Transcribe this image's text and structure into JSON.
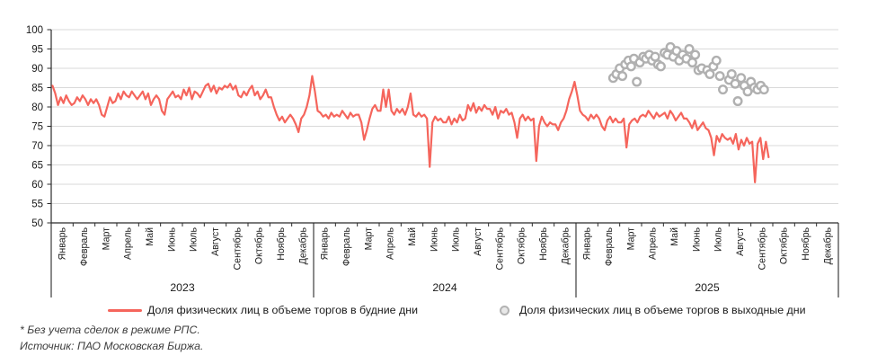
{
  "chart_data": {
    "type": "line",
    "title": "",
    "xlabel": "",
    "ylabel": "",
    "ylim": [
      50,
      100
    ],
    "grid": "horizontal",
    "y_ticks": [
      "100",
      "95",
      "90",
      "85",
      "80",
      "75",
      "70",
      "65",
      "60",
      "55",
      "50"
    ],
    "x_axis": {
      "years": [
        "2023",
        "2024",
        "2025"
      ],
      "months": [
        "Январь",
        "Февраль",
        "Март",
        "Апрель",
        "Май",
        "Июнь",
        "Июль",
        "Август",
        "Сентябрь",
        "Октябрь",
        "Ноябрь",
        "Декабрь"
      ]
    },
    "series": [
      {
        "name": "Доля физических лиц в объеме торгов в будние дни",
        "kind": "line",
        "color": "#F5655C",
        "start_month": 0.06,
        "month_step": 0.125,
        "values": [
          85.5,
          83.5,
          80.5,
          82.5,
          81.0,
          83.0,
          81.5,
          80.5,
          81.0,
          82.5,
          81.5,
          83.0,
          82.0,
          80.5,
          82.0,
          81.0,
          82.0,
          80.5,
          78.0,
          77.5,
          80.0,
          82.5,
          81.0,
          81.5,
          83.5,
          82.0,
          84.0,
          83.0,
          82.5,
          84.0,
          83.0,
          82.0,
          83.0,
          84.0,
          82.0,
          83.5,
          80.5,
          82.0,
          83.0,
          82.0,
          79.0,
          78.0,
          82.0,
          83.0,
          84.0,
          82.5,
          83.0,
          82.0,
          84.5,
          83.0,
          85.0,
          82.0,
          84.0,
          83.5,
          82.5,
          84.0,
          85.5,
          86.0,
          84.0,
          85.5,
          83.5,
          85.0,
          84.5,
          85.5,
          85.0,
          86.0,
          84.5,
          85.5,
          83.0,
          82.5,
          84.0,
          83.0,
          84.5,
          85.5,
          83.0,
          84.0,
          82.0,
          83.0,
          84.5,
          82.5,
          82.5,
          80.0,
          78.0,
          76.5,
          77.5,
          76.0,
          77.0,
          78.0,
          77.0,
          75.5,
          73.5,
          77.0,
          78.0,
          80.0,
          83.0,
          88.0,
          84.0,
          79.0,
          78.5,
          77.5,
          78.0,
          77.0,
          78.5,
          77.5,
          78.0,
          77.5,
          79.0,
          78.0,
          77.0,
          78.5,
          77.5,
          78.0,
          78.0,
          76.0,
          71.5,
          74.0,
          77.0,
          79.5,
          80.5,
          79.0,
          79.0,
          84.5,
          80.0,
          84.5,
          79.0,
          78.0,
          79.5,
          78.5,
          79.5,
          78.0,
          80.0,
          83.5,
          78.0,
          77.5,
          78.5,
          77.5,
          78.0,
          77.0,
          64.5,
          76.0,
          77.5,
          76.5,
          77.0,
          76.0,
          76.0,
          77.5,
          75.5,
          77.0,
          76.0,
          78.0,
          76.5,
          77.0,
          80.5,
          79.0,
          81.0,
          78.5,
          80.0,
          79.0,
          80.5,
          79.5,
          79.5,
          78.0,
          80.0,
          77.0,
          79.0,
          78.5,
          79.5,
          78.0,
          78.5,
          76.0,
          72.0,
          77.0,
          78.0,
          76.5,
          77.5,
          76.5,
          77.0,
          66.0,
          75.0,
          77.5,
          76.0,
          75.0,
          76.0,
          75.5,
          75.5,
          74.0,
          76.0,
          77.0,
          79.0,
          82.0,
          84.0,
          86.5,
          83.0,
          79.0,
          78.0,
          77.5,
          76.5,
          78.0,
          77.0,
          78.0,
          77.0,
          75.0,
          74.0,
          76.5,
          77.5,
          76.0,
          77.0,
          76.0,
          76.0,
          77.0,
          69.5,
          75.5,
          76.5,
          77.0,
          76.0,
          77.5,
          78.0,
          77.5,
          79.0,
          78.0,
          77.0,
          78.5,
          77.5,
          78.0,
          78.5,
          77.0,
          79.0,
          78.0,
          76.5,
          77.5,
          78.5,
          77.0,
          77.0,
          76.0,
          74.5,
          76.5,
          74.0,
          75.0,
          76.0,
          74.5,
          74.0,
          72.0,
          67.5,
          72.5,
          71.0,
          73.0,
          72.0,
          71.5,
          72.0,
          70.5,
          73.0,
          69.0,
          71.5,
          70.0,
          72.0,
          70.5,
          71.0,
          60.5,
          70.5,
          72.0,
          66.5,
          71.0,
          67.0
        ]
      },
      {
        "name": "Доля физических лиц в объеме торгов в выходные дни",
        "kind": "scatter",
        "color": "#B0B0B0",
        "points": [
          [
            25.7,
            87.5
          ],
          [
            25.85,
            88.5
          ],
          [
            26.0,
            90.0
          ],
          [
            26.12,
            88.0
          ],
          [
            26.25,
            91.0
          ],
          [
            26.4,
            92.0
          ],
          [
            26.52,
            90.5
          ],
          [
            26.65,
            92.5
          ],
          [
            26.78,
            86.5
          ],
          [
            26.92,
            91.5
          ],
          [
            27.08,
            93.0
          ],
          [
            27.2,
            92.5
          ],
          [
            27.35,
            93.5
          ],
          [
            27.48,
            92.0
          ],
          [
            27.62,
            93.0
          ],
          [
            27.75,
            91.0
          ],
          [
            27.88,
            90.5
          ],
          [
            28.05,
            94.0
          ],
          [
            28.18,
            93.5
          ],
          [
            28.32,
            95.5
          ],
          [
            28.45,
            93.0
          ],
          [
            28.6,
            94.5
          ],
          [
            28.72,
            92.0
          ],
          [
            28.88,
            93.5
          ],
          [
            29.05,
            92.5
          ],
          [
            29.18,
            95.0
          ],
          [
            29.32,
            91.5
          ],
          [
            29.45,
            93.5
          ],
          [
            29.6,
            89.5
          ],
          [
            29.75,
            90.0
          ],
          [
            30.0,
            89.5
          ],
          [
            30.12,
            88.5
          ],
          [
            30.28,
            90.5
          ],
          [
            30.42,
            92.0
          ],
          [
            30.58,
            88.0
          ],
          [
            30.72,
            84.5
          ],
          [
            31.0,
            87.0
          ],
          [
            31.12,
            88.5
          ],
          [
            31.28,
            86.0
          ],
          [
            31.4,
            81.5
          ],
          [
            31.55,
            87.5
          ],
          [
            31.7,
            85.5
          ],
          [
            31.85,
            84.0
          ],
          [
            32.0,
            86.5
          ],
          [
            32.15,
            85.0
          ],
          [
            32.3,
            84.5
          ],
          [
            32.45,
            85.5
          ],
          [
            32.6,
            84.5
          ]
        ]
      }
    ],
    "legend_position": "bottom"
  },
  "legend": {
    "weekday_label": "Доля физических лиц в объеме торгов в будние дни",
    "weekend_label": "Доля физических лиц в объеме торгов в выходные дни"
  },
  "footnotes": {
    "line1": "* Без учета сделок в режиме РПС.",
    "line2": "Источник: ПАО Московская Биржа."
  },
  "colors": {
    "weekday_line": "#F5655C",
    "weekend_marker": "#B0B0B0",
    "gridline": "#D9D9D9",
    "axis": "#2b2b2b",
    "text": "#1a1a1a"
  }
}
